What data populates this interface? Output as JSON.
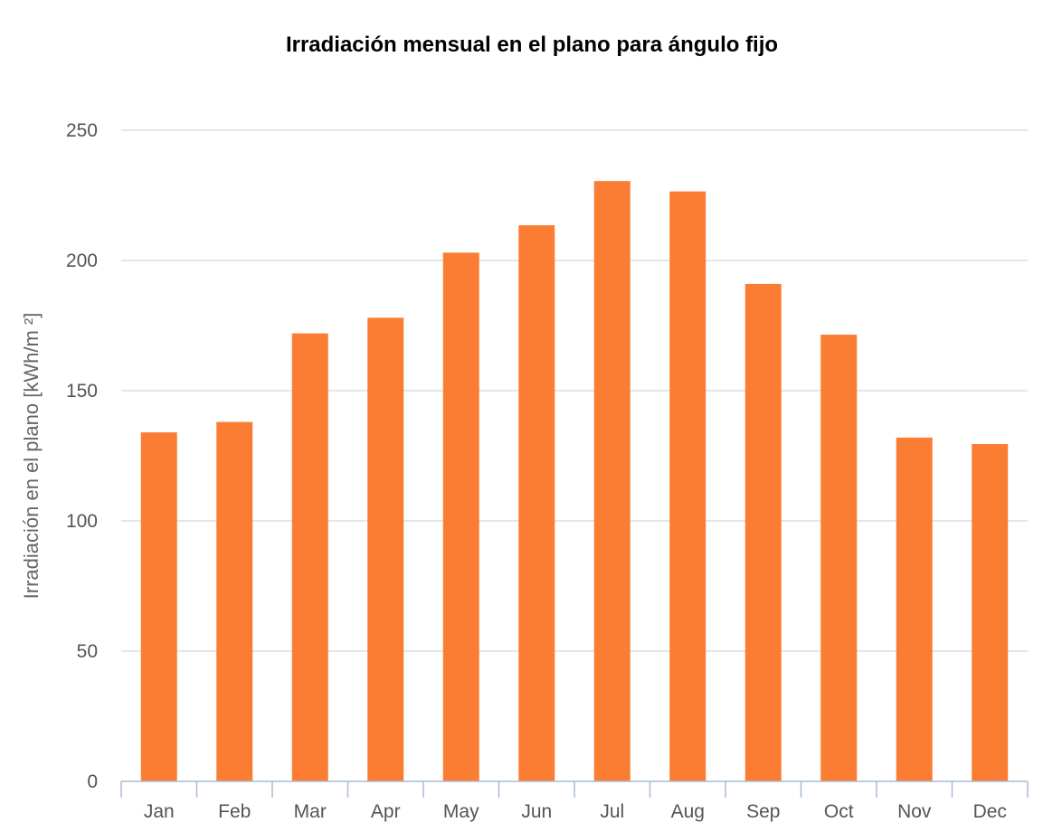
{
  "chart_data": {
    "type": "bar",
    "title": "Irradiación mensual en el plano para ángulo fijo",
    "xlabel": "",
    "ylabel": "Irradiación en el plano [kWh/m ²]",
    "categories": [
      "Jan",
      "Feb",
      "Mar",
      "Apr",
      "May",
      "Jun",
      "Jul",
      "Aug",
      "Sep",
      "Oct",
      "Nov",
      "Dec"
    ],
    "values": [
      134,
      138,
      172,
      178,
      203,
      213.5,
      230.5,
      226.5,
      191,
      171.5,
      132,
      129.5
    ],
    "ylim": [
      0,
      250
    ],
    "yticks": [
      0,
      50,
      100,
      150,
      200,
      250
    ],
    "grid": true,
    "legend": "none",
    "colors": {
      "bar": "#fb7d33",
      "grid": "#d6d6d6",
      "axis": "#a9bcd3",
      "title": "#000000",
      "tick_text": "#555555",
      "axis_title": "#666666"
    }
  }
}
